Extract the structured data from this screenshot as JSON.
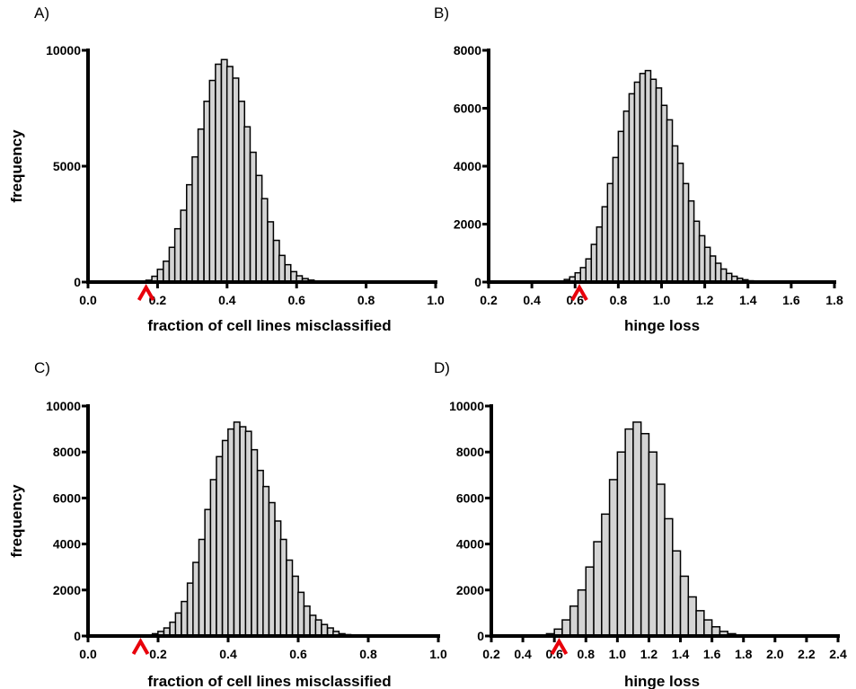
{
  "chart_data": [
    {
      "panel": "A)",
      "type": "bar",
      "xlabel": "fraction of cell lines misclassified",
      "ylabel": "frequency",
      "xlim": [
        0,
        1.0
      ],
      "ylim": [
        0,
        10000
      ],
      "xticks": [
        0.0,
        0.2,
        0.4,
        0.6,
        0.8,
        1.0
      ],
      "xtick_labels": [
        "0.0",
        "0.2",
        "0.4",
        "0.6",
        "0.8",
        "1.0"
      ],
      "yticks": [
        0,
        5000,
        10000
      ],
      "ytick_labels": [
        "0",
        "5000",
        "10000"
      ],
      "bin_width": 0.0167,
      "x": [
        0.158,
        0.175,
        0.192,
        0.208,
        0.225,
        0.242,
        0.258,
        0.275,
        0.292,
        0.308,
        0.325,
        0.342,
        0.358,
        0.375,
        0.392,
        0.408,
        0.425,
        0.442,
        0.458,
        0.475,
        0.492,
        0.508,
        0.525,
        0.542,
        0.558,
        0.575,
        0.592,
        0.608,
        0.625,
        0.642,
        0.658,
        0.675,
        0.692,
        0.708
      ],
      "values": [
        30,
        80,
        250,
        550,
        900,
        1500,
        2300,
        3100,
        4200,
        5400,
        6600,
        7800,
        8700,
        9400,
        9600,
        9300,
        8800,
        7800,
        6700,
        5600,
        4600,
        3600,
        2600,
        1800,
        1150,
        750,
        450,
        270,
        150,
        85,
        45,
        25,
        12,
        5
      ],
      "marker_x": 0.167,
      "marker_color": "#e8000b",
      "bar_fill": "#d4d4d4"
    },
    {
      "panel": "B)",
      "type": "bar",
      "xlabel": "hinge loss",
      "ylabel": "",
      "xlim": [
        0.2,
        1.8
      ],
      "ylim": [
        0,
        8000
      ],
      "xticks": [
        0.2,
        0.4,
        0.6,
        0.8,
        1.0,
        1.2,
        1.4,
        1.6,
        1.8
      ],
      "xtick_labels": [
        "0.2",
        "0.4",
        "0.6",
        "0.8",
        "1.0",
        "1.2",
        "1.4",
        "1.6",
        "1.8"
      ],
      "yticks": [
        0,
        2000,
        4000,
        6000,
        8000
      ],
      "ytick_labels": [
        "0",
        "2000",
        "4000",
        "6000",
        "8000"
      ],
      "bin_width": 0.025,
      "x": [
        0.5125,
        0.5375,
        0.5625,
        0.5875,
        0.6125,
        0.6375,
        0.6625,
        0.6875,
        0.7125,
        0.7375,
        0.7625,
        0.7875,
        0.8125,
        0.8375,
        0.8625,
        0.8875,
        0.9125,
        0.9375,
        0.9625,
        0.9875,
        1.0125,
        1.0375,
        1.0625,
        1.0875,
        1.1125,
        1.1375,
        1.1625,
        1.1875,
        1.2125,
        1.2375,
        1.2625,
        1.2875,
        1.3125,
        1.3375,
        1.3625,
        1.3875,
        1.4125,
        1.4375,
        1.4625
      ],
      "values": [
        20,
        40,
        90,
        180,
        320,
        500,
        800,
        1300,
        1900,
        2600,
        3400,
        4300,
        5200,
        5900,
        6500,
        6900,
        7200,
        7300,
        7000,
        6700,
        6100,
        5600,
        4700,
        4100,
        3400,
        2800,
        2100,
        1600,
        1200,
        900,
        650,
        450,
        300,
        200,
        130,
        80,
        45,
        25,
        10
      ],
      "marker_x": 0.62,
      "marker_color": "#e8000b",
      "bar_fill": "#d4d4d4"
    },
    {
      "panel": "C)",
      "type": "bar",
      "xlabel": "fraction of cell lines misclassified",
      "ylabel": "frequency",
      "xlim": [
        0,
        1.0
      ],
      "ylim": [
        0,
        10000
      ],
      "xticks": [
        0.0,
        0.2,
        0.4,
        0.6,
        0.8,
        1.0
      ],
      "xtick_labels": [
        "0.0",
        "0.2",
        "0.4",
        "0.6",
        "0.8",
        "1.0"
      ],
      "yticks": [
        0,
        2000,
        4000,
        6000,
        8000,
        10000
      ],
      "ytick_labels": [
        "0",
        "2000",
        "4000",
        "6000",
        "8000",
        "10000"
      ],
      "bin_width": 0.0167,
      "x": [
        0.192,
        0.208,
        0.225,
        0.242,
        0.258,
        0.275,
        0.292,
        0.308,
        0.325,
        0.342,
        0.358,
        0.375,
        0.392,
        0.408,
        0.425,
        0.442,
        0.458,
        0.475,
        0.492,
        0.508,
        0.525,
        0.542,
        0.558,
        0.575,
        0.592,
        0.608,
        0.625,
        0.642,
        0.658,
        0.675,
        0.692,
        0.708,
        0.725,
        0.742,
        0.758,
        0.775,
        0.792,
        0.808
      ],
      "values": [
        100,
        200,
        350,
        600,
        1000,
        1500,
        2300,
        3200,
        4200,
        5500,
        6800,
        7800,
        8500,
        9000,
        9300,
        9100,
        8900,
        8100,
        7200,
        6500,
        5800,
        5000,
        4200,
        3300,
        2600,
        1900,
        1300,
        900,
        700,
        500,
        350,
        200,
        100,
        60,
        40,
        20,
        10,
        5
      ],
      "marker_x": 0.15,
      "marker_color": "#e8000b",
      "bar_fill": "#d4d4d4"
    },
    {
      "panel": "D)",
      "type": "bar",
      "xlabel": "hinge loss",
      "ylabel": "",
      "xlim": [
        0.2,
        2.4
      ],
      "ylim": [
        0,
        10000
      ],
      "xticks": [
        0.2,
        0.4,
        0.6,
        0.8,
        1.0,
        1.2,
        1.4,
        1.6,
        1.8,
        2.0,
        2.2,
        2.4
      ],
      "xtick_labels": [
        "0.2",
        "0.4",
        "0.6",
        "0.8",
        "1.0",
        "1.2",
        "1.4",
        "1.6",
        "1.8",
        "2.0",
        "2.2",
        "2.4"
      ],
      "yticks": [
        0,
        2000,
        4000,
        6000,
        8000,
        10000
      ],
      "ytick_labels": [
        "0",
        "2000",
        "4000",
        "6000",
        "8000",
        "10000"
      ],
      "bin_width": 0.05,
      "x": [
        0.575,
        0.625,
        0.675,
        0.725,
        0.775,
        0.825,
        0.875,
        0.925,
        0.975,
        1.025,
        1.075,
        1.125,
        1.175,
        1.225,
        1.275,
        1.325,
        1.375,
        1.425,
        1.475,
        1.525,
        1.575,
        1.625,
        1.675,
        1.725,
        1.775
      ],
      "values": [
        100,
        300,
        700,
        1300,
        2000,
        3000,
        4100,
        5300,
        6800,
        8000,
        9000,
        9300,
        8800,
        8000,
        6600,
        5100,
        3700,
        2600,
        1700,
        1100,
        700,
        400,
        200,
        100,
        40
      ],
      "marker_x": 0.63,
      "marker_color": "#e8000b",
      "bar_fill": "#d4d4d4"
    }
  ]
}
